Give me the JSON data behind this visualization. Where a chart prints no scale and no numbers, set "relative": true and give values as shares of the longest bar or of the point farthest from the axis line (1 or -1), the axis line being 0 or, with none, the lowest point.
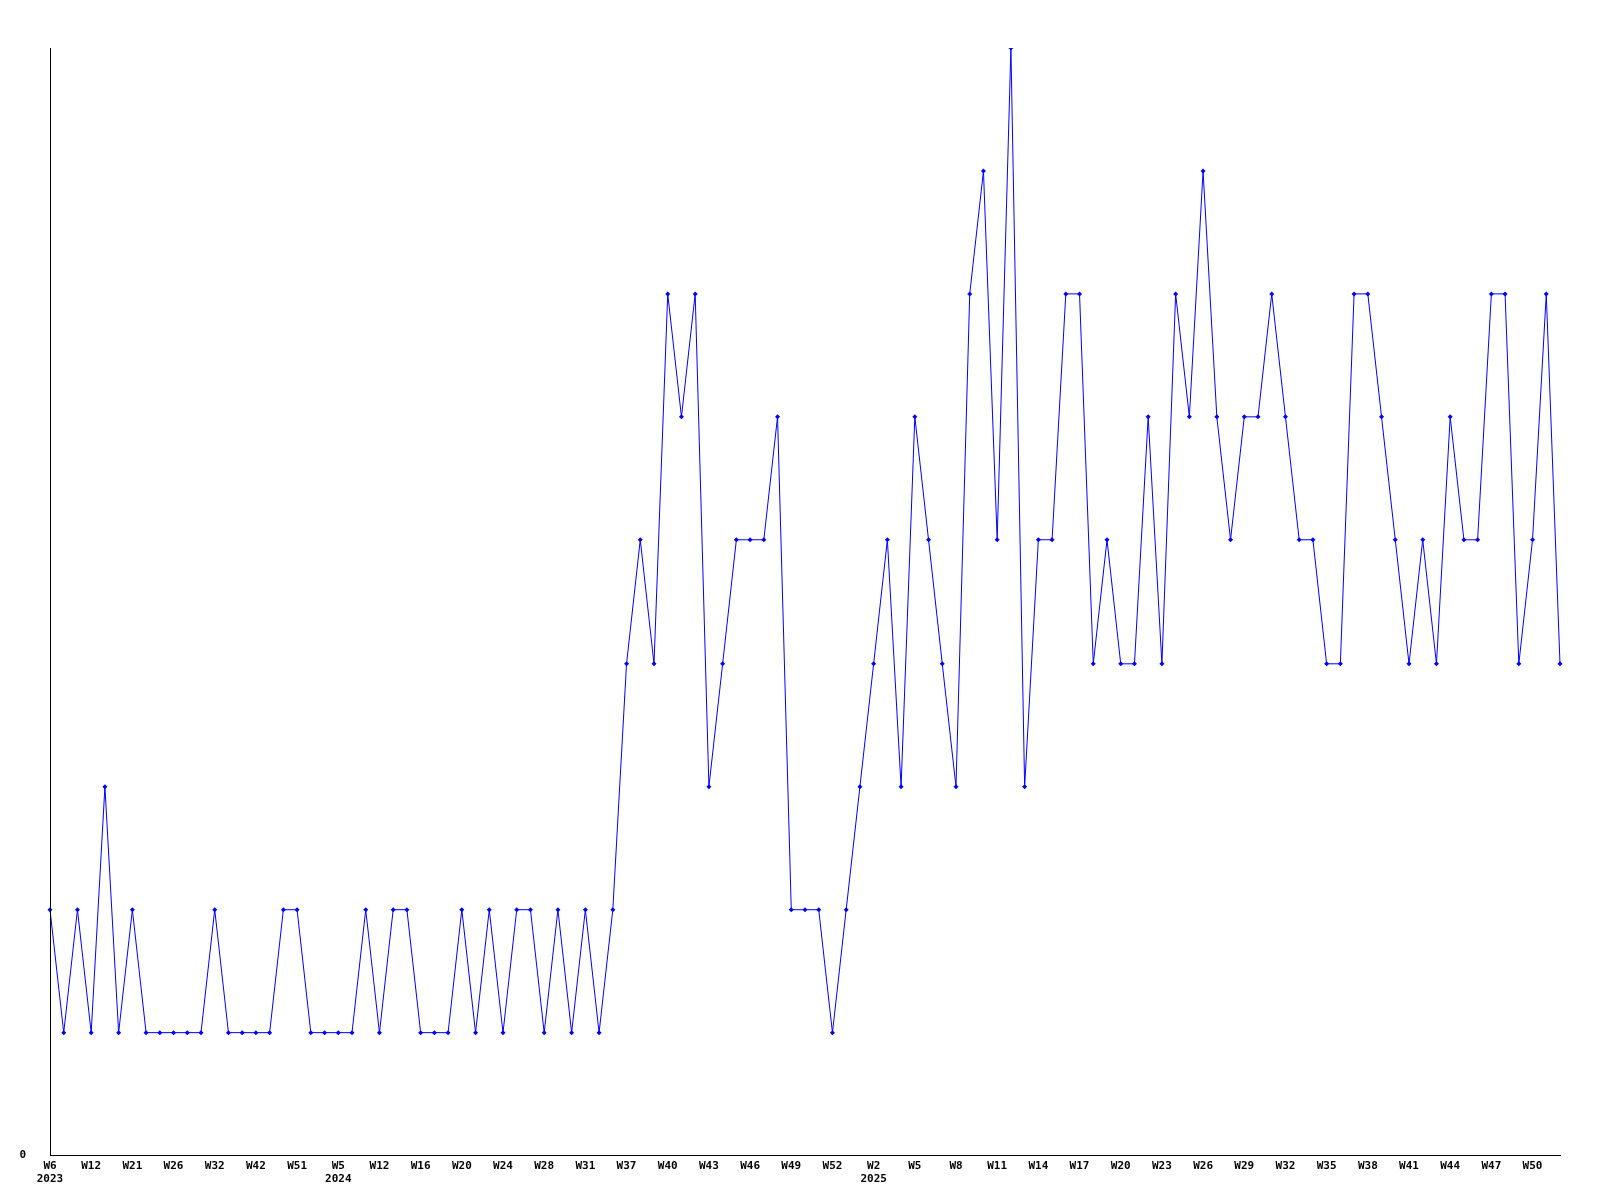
{
  "chart_data": {
    "type": "line",
    "relative": true,
    "marker": "diamond",
    "legend": false,
    "grid": false,
    "annotations": [
      "0"
    ],
    "categories": [
      "W6\n2023",
      null,
      null,
      "W12",
      null,
      null,
      "W21",
      null,
      null,
      "W26",
      null,
      null,
      "W32",
      null,
      null,
      "W42",
      null,
      null,
      "W51",
      null,
      null,
      "W5\n2024",
      null,
      null,
      "W12",
      null,
      null,
      "W16",
      null,
      null,
      "W20",
      null,
      null,
      "W24",
      null,
      null,
      "W28",
      null,
      null,
      "W31",
      null,
      null,
      "W37",
      null,
      null,
      "W40",
      null,
      null,
      "W43",
      null,
      null,
      "W46",
      null,
      null,
      "W49",
      null,
      null,
      "W52",
      null,
      null,
      "W2\n2025",
      null,
      null,
      "W5",
      null,
      null,
      "W8",
      null,
      null,
      "W11",
      null,
      null,
      "W14",
      null,
      null,
      "W17",
      null,
      null,
      "W20",
      null,
      null,
      "W23",
      null,
      null,
      "W26",
      null,
      null,
      "W29",
      null,
      null,
      "W32",
      null,
      null,
      "W35",
      null,
      null,
      "W38",
      null,
      null,
      "W41",
      null,
      null,
      "W44",
      null,
      null,
      "W47",
      null,
      null,
      "W50",
      null,
      null
    ],
    "series": [
      {
        "color": "#0000ff",
        "values": [
          0.222,
          0.111,
          0.222,
          0.111,
          0.333,
          0.111,
          0.222,
          0.111,
          0.111,
          0.111,
          0.111,
          0.111,
          0.222,
          0.111,
          0.111,
          0.111,
          0.111,
          0.222,
          0.222,
          0.111,
          0.111,
          0.111,
          0.111,
          0.222,
          0.111,
          0.222,
          0.222,
          0.111,
          0.111,
          0.111,
          0.222,
          0.111,
          0.222,
          0.111,
          0.222,
          0.222,
          0.111,
          0.222,
          0.111,
          0.222,
          0.111,
          0.222,
          0.444,
          0.556,
          0.444,
          0.778,
          0.667,
          0.778,
          0.333,
          0.444,
          0.556,
          0.556,
          0.556,
          0.667,
          0.222,
          0.222,
          0.222,
          0.111,
          0.222,
          0.333,
          0.444,
          0.556,
          0.333,
          0.667,
          0.556,
          0.444,
          0.333,
          0.778,
          0.889,
          0.556,
          1,
          0.333,
          0.556,
          0.556,
          0.778,
          0.778,
          0.444,
          0.556,
          0.444,
          0.444,
          0.667,
          0.444,
          0.778,
          0.667,
          0.889,
          0.667,
          0.556,
          0.667,
          0.667,
          0.778,
          0.667,
          0.556,
          0.556,
          0.444,
          0.444,
          0.778,
          0.778,
          0.667,
          0.556,
          0.444,
          0.556,
          0.444,
          0.667,
          0.556,
          0.556,
          0.778,
          0.778,
          0.444,
          0.556,
          0.778,
          0.444
        ]
      }
    ]
  }
}
